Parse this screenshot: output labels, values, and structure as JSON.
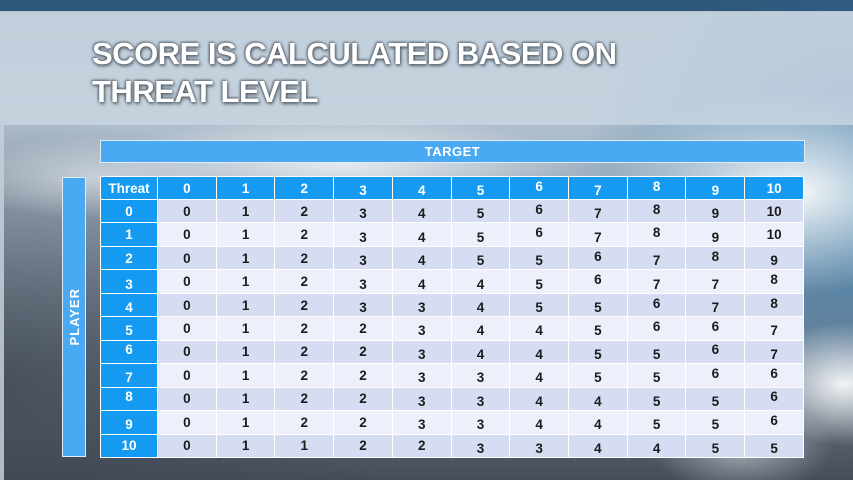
{
  "slide": {
    "title_line1": "SCORE IS CALCULATED BASED ON",
    "title_line2": "THREAT LEVEL"
  },
  "matrix": {
    "target_label": "TARGET",
    "player_label": "PLAYER",
    "corner_label": "Threat",
    "column_headers": [
      "0",
      "1",
      "2",
      "3",
      "4",
      "5",
      "6",
      "7",
      "8",
      "9",
      "10"
    ],
    "row_headers": [
      "0",
      "1",
      "2",
      "3",
      "4",
      "5",
      "6",
      "7",
      "8",
      "9",
      "10"
    ],
    "rows": [
      [
        0,
        1,
        2,
        3,
        4,
        5,
        6,
        7,
        8,
        9,
        10
      ],
      [
        0,
        1,
        2,
        3,
        4,
        5,
        6,
        7,
        8,
        9,
        10
      ],
      [
        0,
        1,
        2,
        3,
        4,
        5,
        5,
        6,
        7,
        8,
        9
      ],
      [
        0,
        1,
        2,
        3,
        4,
        4,
        5,
        6,
        7,
        7,
        8
      ],
      [
        0,
        1,
        2,
        3,
        3,
        4,
        5,
        5,
        6,
        7,
        8
      ],
      [
        0,
        1,
        2,
        2,
        3,
        4,
        4,
        5,
        6,
        6,
        7
      ],
      [
        0,
        1,
        2,
        2,
        3,
        4,
        4,
        5,
        5,
        6,
        7
      ],
      [
        0,
        1,
        2,
        2,
        3,
        3,
        4,
        5,
        5,
        6,
        6
      ],
      [
        0,
        1,
        2,
        2,
        3,
        3,
        4,
        4,
        5,
        5,
        6
      ],
      [
        0,
        1,
        2,
        2,
        3,
        3,
        4,
        4,
        5,
        5,
        6
      ],
      [
        0,
        1,
        1,
        2,
        2,
        3,
        3,
        4,
        4,
        5,
        5
      ]
    ]
  },
  "chart_data": {
    "type": "table",
    "title": "Score matrix by player threat (rows) vs target threat (columns)",
    "x_axis_label": "TARGET",
    "y_axis_label": "PLAYER",
    "corner_label": "Threat",
    "columns": [
      0,
      1,
      2,
      3,
      4,
      5,
      6,
      7,
      8,
      9,
      10
    ],
    "row_labels": [
      0,
      1,
      2,
      3,
      4,
      5,
      6,
      7,
      8,
      9,
      10
    ],
    "values": [
      [
        0,
        1,
        2,
        3,
        4,
        5,
        6,
        7,
        8,
        9,
        10
      ],
      [
        0,
        1,
        2,
        3,
        4,
        5,
        6,
        7,
        8,
        9,
        10
      ],
      [
        0,
        1,
        2,
        3,
        4,
        5,
        5,
        6,
        7,
        8,
        9
      ],
      [
        0,
        1,
        2,
        3,
        4,
        4,
        5,
        6,
        7,
        7,
        8
      ],
      [
        0,
        1,
        2,
        3,
        3,
        4,
        5,
        5,
        6,
        7,
        8
      ],
      [
        0,
        1,
        2,
        2,
        3,
        4,
        4,
        5,
        6,
        6,
        7
      ],
      [
        0,
        1,
        2,
        2,
        3,
        4,
        4,
        5,
        5,
        6,
        7
      ],
      [
        0,
        1,
        2,
        2,
        3,
        3,
        4,
        5,
        5,
        6,
        6
      ],
      [
        0,
        1,
        2,
        2,
        3,
        3,
        4,
        4,
        5,
        5,
        6
      ],
      [
        0,
        1,
        2,
        2,
        3,
        3,
        4,
        4,
        5,
        5,
        6
      ],
      [
        0,
        1,
        1,
        2,
        2,
        3,
        3,
        4,
        4,
        5,
        5
      ]
    ]
  },
  "colors": {
    "header_blue": "#149bf1",
    "band_blue": "#4aa9f3",
    "row_even": "#d6ddf2",
    "row_odd": "#edf0fa",
    "cell_text": "#1b1b1b",
    "banner": "#cbd7e3",
    "sky_top": "#2f5779"
  }
}
